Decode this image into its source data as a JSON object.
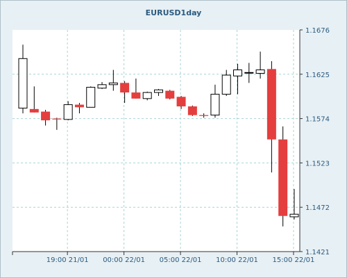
{
  "window": {
    "background": "#e7f0f4",
    "plot_background": "#ffffff"
  },
  "chart_data": {
    "type": "candlestick",
    "title": "EURUSD1day",
    "xlabel": "",
    "ylabel": "",
    "ylim": [
      1.1421,
      1.1676
    ],
    "yticks": [
      "1.1676",
      "1.1625",
      "1.1574",
      "1.1523",
      "1.1472",
      "1.1421"
    ],
    "xticks": [
      {
        "label": "19:00 21/01",
        "index": 4
      },
      {
        "label": "00:00 22/01",
        "index": 9
      },
      {
        "label": "05:00 22/01",
        "index": 14
      },
      {
        "label": "10:00 22/01",
        "index": 19
      },
      {
        "label": "15:00 22/01",
        "index": 24
      }
    ],
    "grid": true,
    "colors": {
      "bear": "#e53e3e",
      "bull": "#ffffff",
      "outline": "#000000",
      "grid": "#a7d3d6"
    },
    "candles": [
      {
        "o": 1.1586,
        "h": 1.1659,
        "l": 1.158,
        "c": 1.1643
      },
      {
        "o": 1.1585,
        "h": 1.1611,
        "l": 1.1581,
        "c": 1.1581
      },
      {
        "o": 1.1582,
        "h": 1.1584,
        "l": 1.1566,
        "c": 1.1572
      },
      {
        "o": 1.1574,
        "h": 1.1575,
        "l": 1.1561,
        "c": 1.1573
      },
      {
        "o": 1.1573,
        "h": 1.1594,
        "l": 1.1572,
        "c": 1.159
      },
      {
        "o": 1.159,
        "h": 1.1592,
        "l": 1.158,
        "c": 1.1587
      },
      {
        "o": 1.1587,
        "h": 1.1611,
        "l": 1.1587,
        "c": 1.161
      },
      {
        "o": 1.1609,
        "h": 1.1616,
        "l": 1.1608,
        "c": 1.1613
      },
      {
        "o": 1.1613,
        "h": 1.163,
        "l": 1.1606,
        "c": 1.1615
      },
      {
        "o": 1.1615,
        "h": 1.1617,
        "l": 1.1592,
        "c": 1.1604
      },
      {
        "o": 1.1604,
        "h": 1.162,
        "l": 1.1597,
        "c": 1.1597
      },
      {
        "o": 1.1597,
        "h": 1.1605,
        "l": 1.1595,
        "c": 1.1604
      },
      {
        "o": 1.1604,
        "h": 1.1608,
        "l": 1.16,
        "c": 1.1607
      },
      {
        "o": 1.1606,
        "h": 1.1607,
        "l": 1.1596,
        "c": 1.1597
      },
      {
        "o": 1.1599,
        "h": 1.16,
        "l": 1.1585,
        "c": 1.1588
      },
      {
        "o": 1.1588,
        "h": 1.1589,
        "l": 1.1577,
        "c": 1.1578
      },
      {
        "o": 1.1578,
        "h": 1.158,
        "l": 1.1575,
        "c": 1.1577
      },
      {
        "o": 1.1578,
        "h": 1.1613,
        "l": 1.1575,
        "c": 1.1602
      },
      {
        "o": 1.1602,
        "h": 1.163,
        "l": 1.16,
        "c": 1.1624
      },
      {
        "o": 1.1623,
        "h": 1.1637,
        "l": 1.1602,
        "c": 1.163
      },
      {
        "o": 1.1627,
        "h": 1.1638,
        "l": 1.1615,
        "c": 1.1627
      },
      {
        "o": 1.1626,
        "h": 1.1651,
        "l": 1.162,
        "c": 1.163
      },
      {
        "o": 1.1631,
        "h": 1.164,
        "l": 1.1512,
        "c": 1.155
      },
      {
        "o": 1.155,
        "h": 1.1565,
        "l": 1.145,
        "c": 1.1462
      },
      {
        "o": 1.1461,
        "h": 1.1493,
        "l": 1.1458,
        "c": 1.1464
      }
    ]
  }
}
